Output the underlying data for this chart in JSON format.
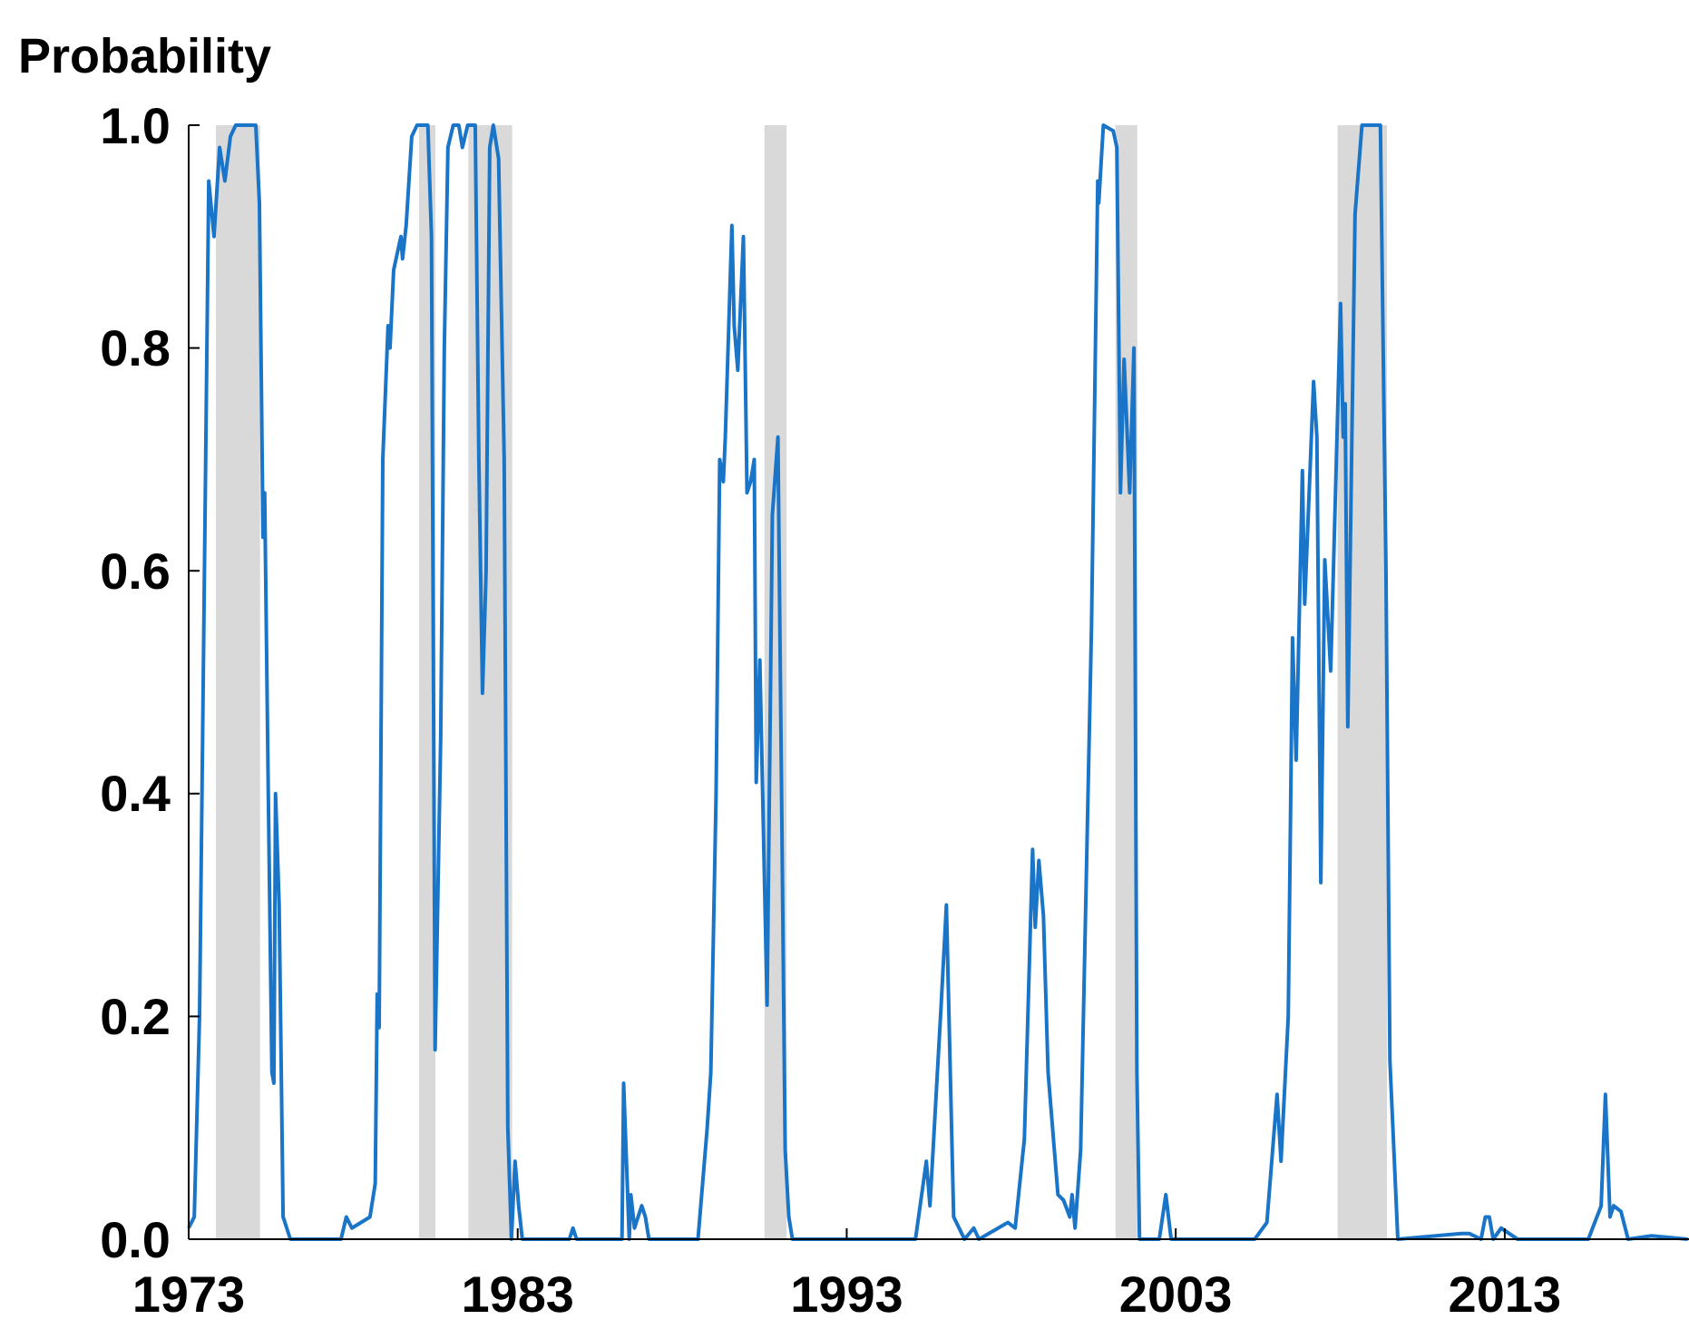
{
  "chart_data": {
    "type": "line",
    "ylabel": "Probability",
    "xlim": [
      1973,
      2018.6
    ],
    "xticks": [
      1973,
      1983,
      1993,
      2003,
      2013
    ],
    "ylim": [
      0,
      1
    ],
    "yticks": [
      {
        "value": 0,
        "label": "0.0"
      },
      {
        "value": 0.2,
        "label": "0.2"
      },
      {
        "value": 0.4,
        "label": "0.4"
      },
      {
        "value": 0.6,
        "label": "0.6"
      },
      {
        "value": 0.8,
        "label": "0.8"
      },
      {
        "value": 1,
        "label": "1.0"
      }
    ],
    "grid": false,
    "bands": [
      {
        "axis": "x",
        "from": 1973.83,
        "to": 1975.17,
        "color": "#d9d9d9"
      },
      {
        "axis": "x",
        "from": 1980.0,
        "to": 1980.5,
        "color": "#d9d9d9"
      },
      {
        "axis": "x",
        "from": 1981.5,
        "to": 1982.83,
        "color": "#d9d9d9"
      },
      {
        "axis": "x",
        "from": 1990.5,
        "to": 1991.17,
        "color": "#d9d9d9"
      },
      {
        "axis": "x",
        "from": 2001.17,
        "to": 2001.83,
        "color": "#d9d9d9"
      },
      {
        "axis": "x",
        "from": 2007.92,
        "to": 2009.42,
        "color": "#d9d9d9"
      }
    ],
    "series": [
      {
        "color": "#1a75c8",
        "x": [
          1973.0,
          1973.17,
          1973.33,
          1973.61,
          1973.77,
          1973.94,
          1974.1,
          1974.27,
          1974.43,
          1975.04,
          1975.15,
          1975.26,
          1975.31,
          1975.42,
          1975.53,
          1975.59,
          1975.64,
          1975.75,
          1975.87,
          1976.09,
          1977.63,
          1977.79,
          1977.96,
          1978.51,
          1978.67,
          1978.73,
          1978.79,
          1978.9,
          1979.06,
          1979.12,
          1979.23,
          1979.45,
          1979.5,
          1979.61,
          1979.78,
          1979.94,
          1980.27,
          1980.38,
          1980.49,
          1980.66,
          1980.77,
          1980.88,
          1981.04,
          1981.21,
          1981.32,
          1981.48,
          1981.71,
          1981.82,
          1981.93,
          1982.04,
          1982.15,
          1982.26,
          1982.42,
          1982.59,
          1982.7,
          1982.81,
          1982.92,
          1983.03,
          1983.14,
          1984.57,
          1984.68,
          1984.79,
          1986.17,
          1986.22,
          1986.33,
          1986.39,
          1986.44,
          1986.55,
          1986.77,
          1986.88,
          1986.99,
          1988.48,
          1988.76,
          1988.87,
          1989.03,
          1989.14,
          1989.25,
          1989.31,
          1989.51,
          1989.58,
          1989.69,
          1989.86,
          1989.97,
          1990.08,
          1990.19,
          1990.25,
          1990.36,
          1990.58,
          1990.74,
          1990.91,
          1991.02,
          1991.13,
          1991.24,
          1991.35,
          1995.09,
          1995.42,
          1995.53,
          1995.87,
          1996.03,
          1996.25,
          1996.58,
          1996.86,
          1997.02,
          1997.9,
          1998.12,
          1998.4,
          1998.65,
          1998.73,
          1998.84,
          1998.98,
          1999.12,
          1999.42,
          1999.59,
          1999.78,
          1999.85,
          1999.94,
          2000.11,
          2000.44,
          2000.63,
          2000.66,
          2000.8,
          2001.1,
          2001.21,
          2001.32,
          2001.43,
          2001.6,
          2001.73,
          2001.82,
          2001.9,
          2002.5,
          2002.7,
          2002.86,
          2005.4,
          2005.77,
          2006.08,
          2006.2,
          2006.42,
          2006.55,
          2006.66,
          2006.85,
          2006.92,
          2007.19,
          2007.29,
          2007.41,
          2007.53,
          2007.71,
          2008.01,
          2008.09,
          2008.15,
          2008.23,
          2008.45,
          2008.66,
          2009.22,
          2009.39,
          2009.51,
          2009.75,
          2011.68,
          2011.93,
          2012.28,
          2012.41,
          2012.53,
          2012.65,
          2012.89,
          2013.39,
          2015.54,
          2015.93,
          2016.06,
          2016.2,
          2016.31,
          2016.53,
          2016.75,
          2017.46,
          2018.56
        ],
        "values": [
          0.01,
          0.02,
          0.2,
          0.95,
          0.9,
          0.98,
          0.95,
          0.99,
          1.0,
          1.0,
          0.93,
          0.63,
          0.67,
          0.4,
          0.15,
          0.14,
          0.4,
          0.3,
          0.02,
          0.0,
          0.0,
          0.02,
          0.01,
          0.02,
          0.05,
          0.22,
          0.19,
          0.7,
          0.82,
          0.8,
          0.87,
          0.9,
          0.88,
          0.91,
          0.99,
          1.0,
          1.0,
          0.9,
          0.17,
          0.45,
          0.8,
          0.98,
          1.0,
          1.0,
          0.98,
          1.0,
          1.0,
          0.7,
          0.49,
          0.6,
          0.98,
          1.0,
          0.97,
          0.7,
          0.1,
          0.0,
          0.07,
          0.03,
          0.0,
          0.0,
          0.01,
          0.0,
          0.0,
          0.14,
          0.05,
          0.0,
          0.04,
          0.01,
          0.03,
          0.02,
          0.0,
          0.0,
          0.1,
          0.15,
          0.4,
          0.7,
          0.68,
          0.72,
          0.91,
          0.82,
          0.78,
          0.9,
          0.67,
          0.68,
          0.7,
          0.41,
          0.52,
          0.21,
          0.65,
          0.72,
          0.4,
          0.08,
          0.02,
          0.0,
          0.0,
          0.07,
          0.03,
          0.21,
          0.3,
          0.02,
          0.0,
          0.01,
          0.0,
          0.015,
          0.01,
          0.09,
          0.35,
          0.28,
          0.34,
          0.29,
          0.15,
          0.04,
          0.035,
          0.02,
          0.04,
          0.01,
          0.08,
          0.55,
          0.95,
          0.93,
          1.0,
          0.995,
          0.98,
          0.67,
          0.79,
          0.67,
          0.8,
          0.15,
          0.0,
          0.0,
          0.04,
          0.0,
          0.0,
          0.015,
          0.13,
          0.07,
          0.2,
          0.54,
          0.43,
          0.69,
          0.57,
          0.77,
          0.72,
          0.32,
          0.61,
          0.51,
          0.84,
          0.72,
          0.75,
          0.46,
          0.92,
          1.0,
          1.0,
          0.6,
          0.16,
          0.0,
          0.005,
          0.005,
          0.0,
          0.02,
          0.02,
          0.0,
          0.01,
          0.0,
          0.0,
          0.03,
          0.13,
          0.02,
          0.03,
          0.025,
          0.0,
          0.003,
          0.0
        ]
      }
    ]
  }
}
